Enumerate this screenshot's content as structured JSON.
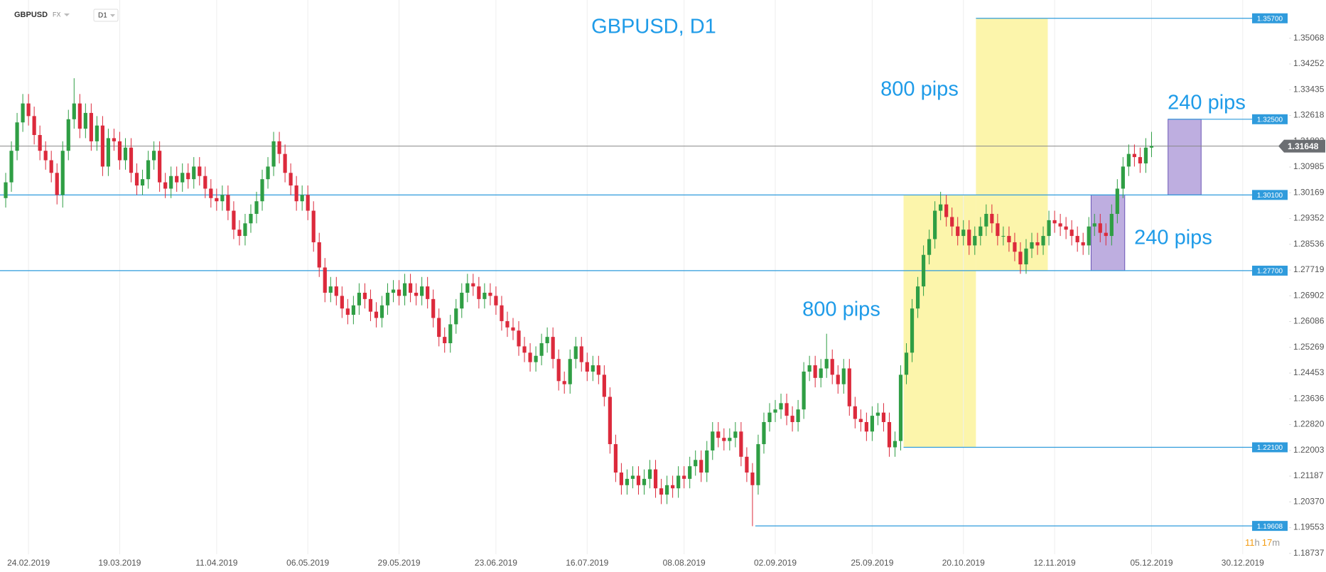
{
  "header": {
    "symbol": "GBPUSD",
    "market": "FX",
    "timeframe": "D1"
  },
  "countdown": [
    "11",
    "h",
    "17",
    "m"
  ],
  "chart_data": {
    "type": "candlestick",
    "title": "GBPUSD, D1",
    "open": [
      1.3,
      1.305,
      1.315,
      1.324,
      1.33,
      1.326,
      1.32,
      1.315,
      1.312,
      1.308,
      1.301,
      1.315,
      1.325,
      1.33,
      1.322,
      1.327,
      1.318,
      1.323,
      1.31,
      1.319,
      1.318,
      1.312,
      1.316,
      1.308,
      1.304,
      1.306,
      1.312,
      1.315,
      1.305,
      1.303,
      1.307,
      1.305,
      1.308,
      1.306,
      1.31,
      1.307,
      1.303,
      1.3,
      1.299,
      1.301,
      1.296,
      1.29,
      1.288,
      1.292,
      1.295,
      1.299,
      1.306,
      1.31,
      1.318,
      1.314,
      1.308,
      1.304,
      1.299,
      1.301,
      1.296,
      1.286,
      1.278,
      1.27,
      1.272,
      1.269,
      1.265,
      1.263,
      1.266,
      1.27,
      1.268,
      1.264,
      1.262,
      1.266,
      1.27,
      1.271,
      1.269,
      1.273,
      1.27,
      1.269,
      1.272,
      1.268,
      1.262,
      1.256,
      1.254,
      1.26,
      1.265,
      1.27,
      1.273,
      1.272,
      1.268,
      1.27,
      1.269,
      1.266,
      1.261,
      1.259,
      1.258,
      1.253,
      1.251,
      1.248,
      1.25,
      1.254,
      1.256,
      1.249,
      1.242,
      1.241,
      1.249,
      1.253,
      1.248,
      1.245,
      1.247,
      1.244,
      1.237,
      1.222,
      1.213,
      1.209,
      1.211,
      1.212,
      1.209,
      1.211,
      1.214,
      1.208,
      1.206,
      1.209,
      1.208,
      1.212,
      1.211,
      1.215,
      1.217,
      1.213,
      1.22,
      1.226,
      1.224,
      1.223,
      1.224,
      1.226,
      1.218,
      1.213,
      1.209,
      1.222,
      1.229,
      1.232,
      1.233,
      1.235,
      1.231,
      1.229,
      1.233,
      1.245,
      1.247,
      1.243,
      1.246,
      1.249,
      1.244,
      1.241,
      1.246,
      1.234,
      1.23,
      1.229,
      1.226,
      1.231,
      1.232,
      1.229,
      1.221,
      1.223,
      1.244,
      1.251,
      1.265,
      1.272,
      1.282,
      1.287,
      1.296,
      1.298,
      1.294,
      1.291,
      1.288,
      1.29,
      1.285,
      1.288,
      1.291,
      1.295,
      1.292,
      1.288,
      1.288,
      1.286,
      1.283,
      1.279,
      1.284,
      1.286,
      1.285,
      1.288,
      1.293,
      1.292,
      1.291,
      1.29,
      1.288,
      1.286,
      1.285,
      1.291,
      1.292,
      1.289,
      1.288,
      1.295,
      1.303,
      1.31,
      1.314,
      1.313,
      1.311,
      1.316
    ],
    "high": [
      1.308,
      1.318,
      1.327,
      1.333,
      1.333,
      1.329,
      1.323,
      1.318,
      1.315,
      1.311,
      1.318,
      1.328,
      1.338,
      1.333,
      1.33,
      1.33,
      1.326,
      1.326,
      1.322,
      1.322,
      1.321,
      1.319,
      1.319,
      1.311,
      1.309,
      1.315,
      1.318,
      1.318,
      1.308,
      1.31,
      1.31,
      1.311,
      1.311,
      1.313,
      1.313,
      1.31,
      1.306,
      1.303,
      1.304,
      1.304,
      1.299,
      1.293,
      1.295,
      1.298,
      1.302,
      1.309,
      1.313,
      1.321,
      1.321,
      1.317,
      1.311,
      1.307,
      1.304,
      1.304,
      1.299,
      1.289,
      1.281,
      1.275,
      1.275,
      1.272,
      1.268,
      1.269,
      1.273,
      1.273,
      1.271,
      1.267,
      1.269,
      1.273,
      1.274,
      1.274,
      1.276,
      1.276,
      1.273,
      1.275,
      1.275,
      1.271,
      1.265,
      1.259,
      1.263,
      1.268,
      1.273,
      1.276,
      1.276,
      1.275,
      1.273,
      1.273,
      1.272,
      1.269,
      1.264,
      1.262,
      1.261,
      1.256,
      1.254,
      1.253,
      1.257,
      1.259,
      1.259,
      1.252,
      1.245,
      1.252,
      1.256,
      1.256,
      1.251,
      1.25,
      1.25,
      1.247,
      1.24,
      1.225,
      1.216,
      1.214,
      1.215,
      1.215,
      1.214,
      1.217,
      1.217,
      1.211,
      1.212,
      1.212,
      1.215,
      1.215,
      1.218,
      1.22,
      1.22,
      1.223,
      1.229,
      1.229,
      1.227,
      1.227,
      1.229,
      1.229,
      1.221,
      1.216,
      1.225,
      1.232,
      1.235,
      1.236,
      1.238,
      1.238,
      1.234,
      1.236,
      1.248,
      1.25,
      1.25,
      1.249,
      1.257,
      1.252,
      1.247,
      1.249,
      1.249,
      1.237,
      1.233,
      1.232,
      1.234,
      1.235,
      1.235,
      1.232,
      1.226,
      1.247,
      1.254,
      1.268,
      1.275,
      1.285,
      1.29,
      1.299,
      1.302,
      1.301,
      1.297,
      1.294,
      1.293,
      1.293,
      1.291,
      1.294,
      1.298,
      1.298,
      1.295,
      1.291,
      1.291,
      1.289,
      1.286,
      1.287,
      1.289,
      1.289,
      1.291,
      1.296,
      1.296,
      1.295,
      1.294,
      1.293,
      1.291,
      1.289,
      1.294,
      1.295,
      1.295,
      1.292,
      1.298,
      1.306,
      1.313,
      1.317,
      1.317,
      1.316,
      1.319,
      1.321
    ],
    "low": [
      1.297,
      1.302,
      1.312,
      1.321,
      1.323,
      1.317,
      1.312,
      1.309,
      1.305,
      1.298,
      1.297,
      1.312,
      1.322,
      1.319,
      1.319,
      1.315,
      1.315,
      1.307,
      1.307,
      1.315,
      1.309,
      1.309,
      1.305,
      1.301,
      1.301,
      1.303,
      1.309,
      1.302,
      1.3,
      1.3,
      1.302,
      1.302,
      1.303,
      1.303,
      1.304,
      1.3,
      1.297,
      1.296,
      1.296,
      1.293,
      1.287,
      1.285,
      1.285,
      1.289,
      1.292,
      1.296,
      1.303,
      1.307,
      1.311,
      1.305,
      1.301,
      1.296,
      1.296,
      1.293,
      1.283,
      1.275,
      1.267,
      1.267,
      1.266,
      1.262,
      1.26,
      1.26,
      1.263,
      1.265,
      1.261,
      1.259,
      1.259,
      1.263,
      1.267,
      1.266,
      1.266,
      1.267,
      1.266,
      1.266,
      1.265,
      1.259,
      1.253,
      1.251,
      1.251,
      1.257,
      1.262,
      1.267,
      1.269,
      1.265,
      1.265,
      1.266,
      1.263,
      1.258,
      1.256,
      1.255,
      1.25,
      1.248,
      1.245,
      1.245,
      1.247,
      1.251,
      1.246,
      1.239,
      1.238,
      1.238,
      1.246,
      1.245,
      1.242,
      1.242,
      1.241,
      1.234,
      1.219,
      1.21,
      1.206,
      1.206,
      1.208,
      1.206,
      1.206,
      1.208,
      1.205,
      1.203,
      1.203,
      1.205,
      1.205,
      1.208,
      1.208,
      1.212,
      1.21,
      1.21,
      1.217,
      1.221,
      1.22,
      1.22,
      1.221,
      1.215,
      1.21,
      1.196,
      1.206,
      1.219,
      1.226,
      1.229,
      1.23,
      1.228,
      1.226,
      1.226,
      1.23,
      1.242,
      1.24,
      1.24,
      1.243,
      1.241,
      1.238,
      1.238,
      1.231,
      1.227,
      1.226,
      1.223,
      1.223,
      1.228,
      1.226,
      1.218,
      1.218,
      1.22,
      1.241,
      1.248,
      1.262,
      1.269,
      1.279,
      1.284,
      1.293,
      1.291,
      1.288,
      1.285,
      1.285,
      1.282,
      1.282,
      1.285,
      1.288,
      1.289,
      1.285,
      1.285,
      1.283,
      1.28,
      1.276,
      1.276,
      1.281,
      1.282,
      1.282,
      1.285,
      1.289,
      1.288,
      1.287,
      1.285,
      1.283,
      1.282,
      1.282,
      1.288,
      1.286,
      1.285,
      1.285,
      1.292,
      1.3,
      1.307,
      1.31,
      1.308,
      1.308,
      1.313
    ],
    "close": [
      1.305,
      1.315,
      1.324,
      1.33,
      1.326,
      1.32,
      1.315,
      1.312,
      1.308,
      1.301,
      1.315,
      1.325,
      1.33,
      1.322,
      1.327,
      1.318,
      1.323,
      1.31,
      1.319,
      1.318,
      1.312,
      1.316,
      1.308,
      1.304,
      1.306,
      1.312,
      1.315,
      1.305,
      1.303,
      1.307,
      1.305,
      1.308,
      1.306,
      1.31,
      1.307,
      1.303,
      1.3,
      1.299,
      1.301,
      1.296,
      1.29,
      1.288,
      1.292,
      1.295,
      1.299,
      1.306,
      1.31,
      1.318,
      1.314,
      1.308,
      1.304,
      1.299,
      1.301,
      1.296,
      1.286,
      1.278,
      1.27,
      1.272,
      1.269,
      1.265,
      1.263,
      1.266,
      1.27,
      1.268,
      1.264,
      1.262,
      1.266,
      1.27,
      1.271,
      1.269,
      1.273,
      1.27,
      1.269,
      1.272,
      1.268,
      1.262,
      1.256,
      1.254,
      1.26,
      1.265,
      1.27,
      1.273,
      1.272,
      1.268,
      1.27,
      1.269,
      1.266,
      1.261,
      1.259,
      1.258,
      1.253,
      1.251,
      1.248,
      1.25,
      1.254,
      1.256,
      1.249,
      1.242,
      1.241,
      1.249,
      1.253,
      1.248,
      1.245,
      1.247,
      1.244,
      1.237,
      1.222,
      1.213,
      1.209,
      1.211,
      1.212,
      1.209,
      1.211,
      1.214,
      1.208,
      1.206,
      1.209,
      1.208,
      1.212,
      1.211,
      1.215,
      1.217,
      1.213,
      1.22,
      1.226,
      1.224,
      1.223,
      1.224,
      1.226,
      1.218,
      1.213,
      1.209,
      1.222,
      1.229,
      1.232,
      1.233,
      1.235,
      1.231,
      1.229,
      1.233,
      1.245,
      1.247,
      1.243,
      1.246,
      1.249,
      1.244,
      1.241,
      1.246,
      1.234,
      1.23,
      1.229,
      1.226,
      1.231,
      1.232,
      1.229,
      1.221,
      1.223,
      1.244,
      1.251,
      1.265,
      1.272,
      1.282,
      1.287,
      1.296,
      1.298,
      1.294,
      1.291,
      1.288,
      1.29,
      1.285,
      1.288,
      1.291,
      1.295,
      1.292,
      1.288,
      1.288,
      1.286,
      1.283,
      1.279,
      1.284,
      1.286,
      1.285,
      1.288,
      1.293,
      1.292,
      1.291,
      1.29,
      1.288,
      1.286,
      1.285,
      1.291,
      1.292,
      1.289,
      1.288,
      1.295,
      1.303,
      1.31,
      1.314,
      1.313,
      1.311,
      1.316,
      1.3165
    ],
    "up_color": "#2f9e44",
    "down_color": "#dc2a3c",
    "xlim": [
      -1,
      225
    ],
    "xticks": [
      {
        "value": 4,
        "label": "24.02.2019"
      },
      {
        "value": 20,
        "label": "19.03.2019"
      },
      {
        "value": 37,
        "label": "11.04.2019"
      },
      {
        "value": 53,
        "label": "06.05.2019"
      },
      {
        "value": 69,
        "label": "29.05.2019"
      },
      {
        "value": 86,
        "label": "23.06.2019"
      },
      {
        "value": 102,
        "label": "16.07.2019"
      },
      {
        "value": 119,
        "label": "08.08.2019"
      },
      {
        "value": 135,
        "label": "02.09.2019"
      },
      {
        "value": 152,
        "label": "25.09.2019"
      },
      {
        "value": 168,
        "label": "20.10.2019"
      },
      {
        "value": 184,
        "label": "12.11.2019"
      },
      {
        "value": 201,
        "label": "05.12.2019"
      },
      {
        "value": 217,
        "label": "30.12.2019"
      }
    ],
    "ylim": [
      1.1871,
      1.3628
    ],
    "yticks": [
      1.35068,
      1.34252,
      1.33435,
      1.32618,
      1.31802,
      1.30985,
      1.30169,
      1.29352,
      1.28536,
      1.27719,
      1.26902,
      1.26086,
      1.25269,
      1.24453,
      1.23636,
      {
        "value": 1.2282,
        "label": "1.22820"
      },
      1.22003,
      1.21187,
      {
        "value": 1.2037,
        "label": "1.20370"
      },
      1.19553,
      1.18737
    ],
    "grid": "x",
    "level_color": "#2f9bdc",
    "levels": [
      {
        "value": 1.357,
        "label": "1.35700",
        "from": 170.2
      },
      {
        "value": 1.325,
        "label": "1.32500",
        "from": 203.9
      },
      {
        "value": 1.301,
        "label": "1.30100",
        "from": -1
      },
      {
        "value": 1.277,
        "label": "1.27700",
        "from": -1
      },
      {
        "value": 1.221,
        "label": "1.22100",
        "from": 157.5
      },
      {
        "value": 1.19608,
        "label": "1.19608",
        "from": 131.5
      }
    ],
    "last_price": 1.31648,
    "zones": [
      {
        "from": 157.5,
        "to": 170.2,
        "low": 1.221,
        "high": 1.301,
        "color": "#fbf28f"
      },
      {
        "from": 170.2,
        "to": 182.8,
        "low": 1.277,
        "high": 1.357,
        "color": "#fbf28f"
      },
      {
        "from": 190.4,
        "to": 196.3,
        "low": 1.277,
        "high": 1.301,
        "color": "#a893d6"
      },
      {
        "from": 203.9,
        "to": 209.7,
        "low": 1.301,
        "high": 1.325,
        "color": "#a893d6"
      }
    ],
    "annotations": [
      "800 pips",
      "800 pips",
      "240 pips",
      "240 pips"
    ]
  }
}
